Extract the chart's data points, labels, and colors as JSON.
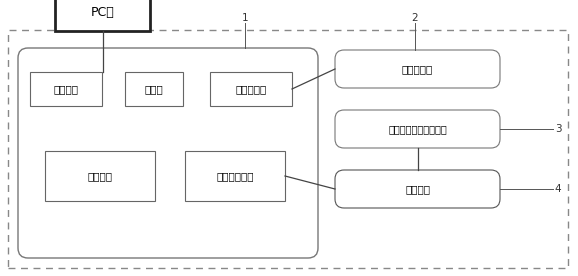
{
  "bg_color": "#ffffff",
  "line_color": "#555555",
  "box_color": "#ffffff",
  "pc_label": "PC机",
  "boxes": {
    "comm_port": "通讯端口",
    "storage": "存储器",
    "valve_drive": "阀驱动电路",
    "micro": "微处理器",
    "motor_drive": "电机驱动电路",
    "solenoid": "电磁阀组件",
    "multi_sample": "多通道精密加样泵组件",
    "drive_motor": "驱动电机"
  },
  "font_size": 7.5,
  "font_family": "SimHei"
}
